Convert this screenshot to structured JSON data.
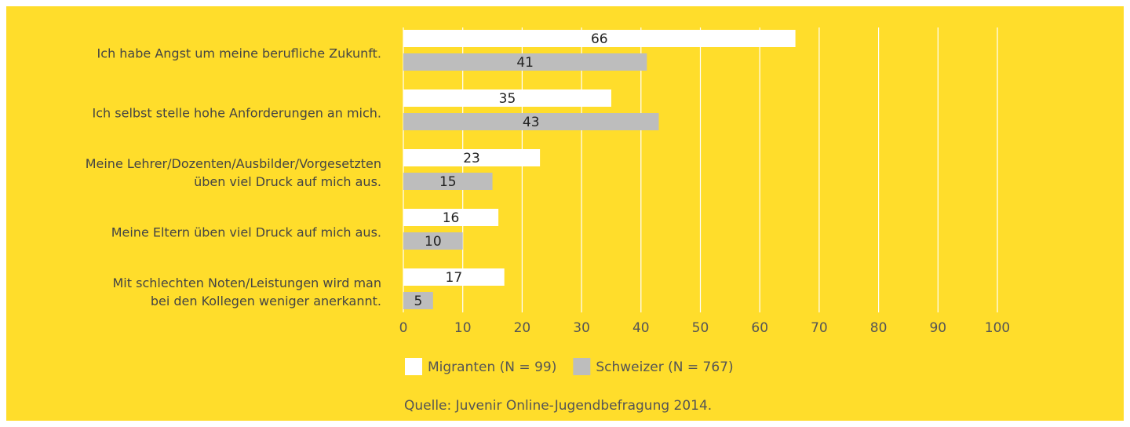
{
  "chart_data": {
    "type": "bar",
    "orientation": "horizontal",
    "categories": [
      "Ich habe Angst um meine berufliche Zukunft.",
      "Ich selbst stelle hohe Anforderungen an mich.",
      "Meine Lehrer/Dozenten/Ausbilder/Vorgesetzten\nüben viel Druck auf mich aus.",
      "Meine Eltern üben viel Druck auf mich aus.",
      "Mit schlechten Noten/Leistungen wird man\nbei den Kollegen weniger anerkannt."
    ],
    "series": [
      {
        "name": "Migranten (N = 99)",
        "color": "#ffffff",
        "values": [
          66,
          35,
          23,
          16,
          17
        ]
      },
      {
        "name": "Schweizer (N = 767)",
        "color": "#bdbdbd",
        "values": [
          41,
          43,
          15,
          10,
          5
        ]
      }
    ],
    "xlim": [
      0,
      100
    ],
    "xticks": [
      0,
      10,
      20,
      30,
      40,
      50,
      60,
      70,
      80,
      90,
      100
    ],
    "grid": true,
    "background": "#ffdd2b",
    "source": "Quelle: Juvenir Online-Jugendbefragung 2014."
  }
}
